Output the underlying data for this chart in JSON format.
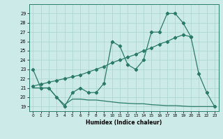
{
  "line1_x": [
    0,
    1,
    2,
    3,
    4,
    5,
    6,
    7,
    8,
    9,
    10,
    11,
    12,
    13,
    14,
    15,
    16,
    17,
    18,
    19,
    20,
    21,
    22,
    23
  ],
  "line1_y": [
    23,
    21,
    21,
    20,
    19,
    20.5,
    21,
    20.5,
    20.5,
    21.5,
    26,
    25.5,
    23.5,
    23,
    24,
    27,
    27,
    29,
    29,
    28,
    26.5,
    22.5,
    20.5,
    19
  ],
  "line2_x": [
    0,
    1,
    2,
    3,
    4,
    5,
    6,
    7,
    8,
    9,
    10,
    11,
    12,
    13,
    14,
    15,
    16,
    17,
    18,
    19,
    20
  ],
  "line2_y": [
    21.2,
    21.4,
    21.6,
    21.8,
    22.0,
    22.2,
    22.4,
    22.7,
    23.0,
    23.3,
    23.7,
    24.0,
    24.3,
    24.6,
    25.0,
    25.3,
    25.7,
    26.0,
    26.4,
    26.7,
    26.5
  ],
  "line3_x": [
    0,
    1,
    2,
    3,
    4,
    5,
    6,
    7,
    8,
    9,
    10,
    11,
    12,
    13,
    14,
    15,
    16,
    17,
    18,
    19,
    20,
    21,
    22,
    23
  ],
  "line3_y": [
    21,
    21,
    21,
    20,
    19.2,
    19.8,
    19.8,
    19.7,
    19.7,
    19.6,
    19.5,
    19.4,
    19.35,
    19.3,
    19.3,
    19.2,
    19.15,
    19.1,
    19.1,
    19.05,
    19.0,
    19.0,
    19.0,
    19.0
  ],
  "color": "#2a7a6a",
  "bg_color": "#cceae8",
  "grid_color": "#aad4d0",
  "xlabel": "Humidex (Indice chaleur)",
  "xlim": [
    -0.5,
    23.5
  ],
  "ylim": [
    18.5,
    30.0
  ],
  "yticks": [
    19,
    20,
    21,
    22,
    23,
    24,
    25,
    26,
    27,
    28,
    29
  ],
  "xticks": [
    0,
    1,
    2,
    3,
    4,
    5,
    6,
    7,
    8,
    9,
    10,
    11,
    12,
    13,
    14,
    15,
    16,
    17,
    18,
    19,
    20,
    21,
    22,
    23
  ],
  "marker": "D",
  "markersize": 2.2,
  "linewidth": 0.9
}
